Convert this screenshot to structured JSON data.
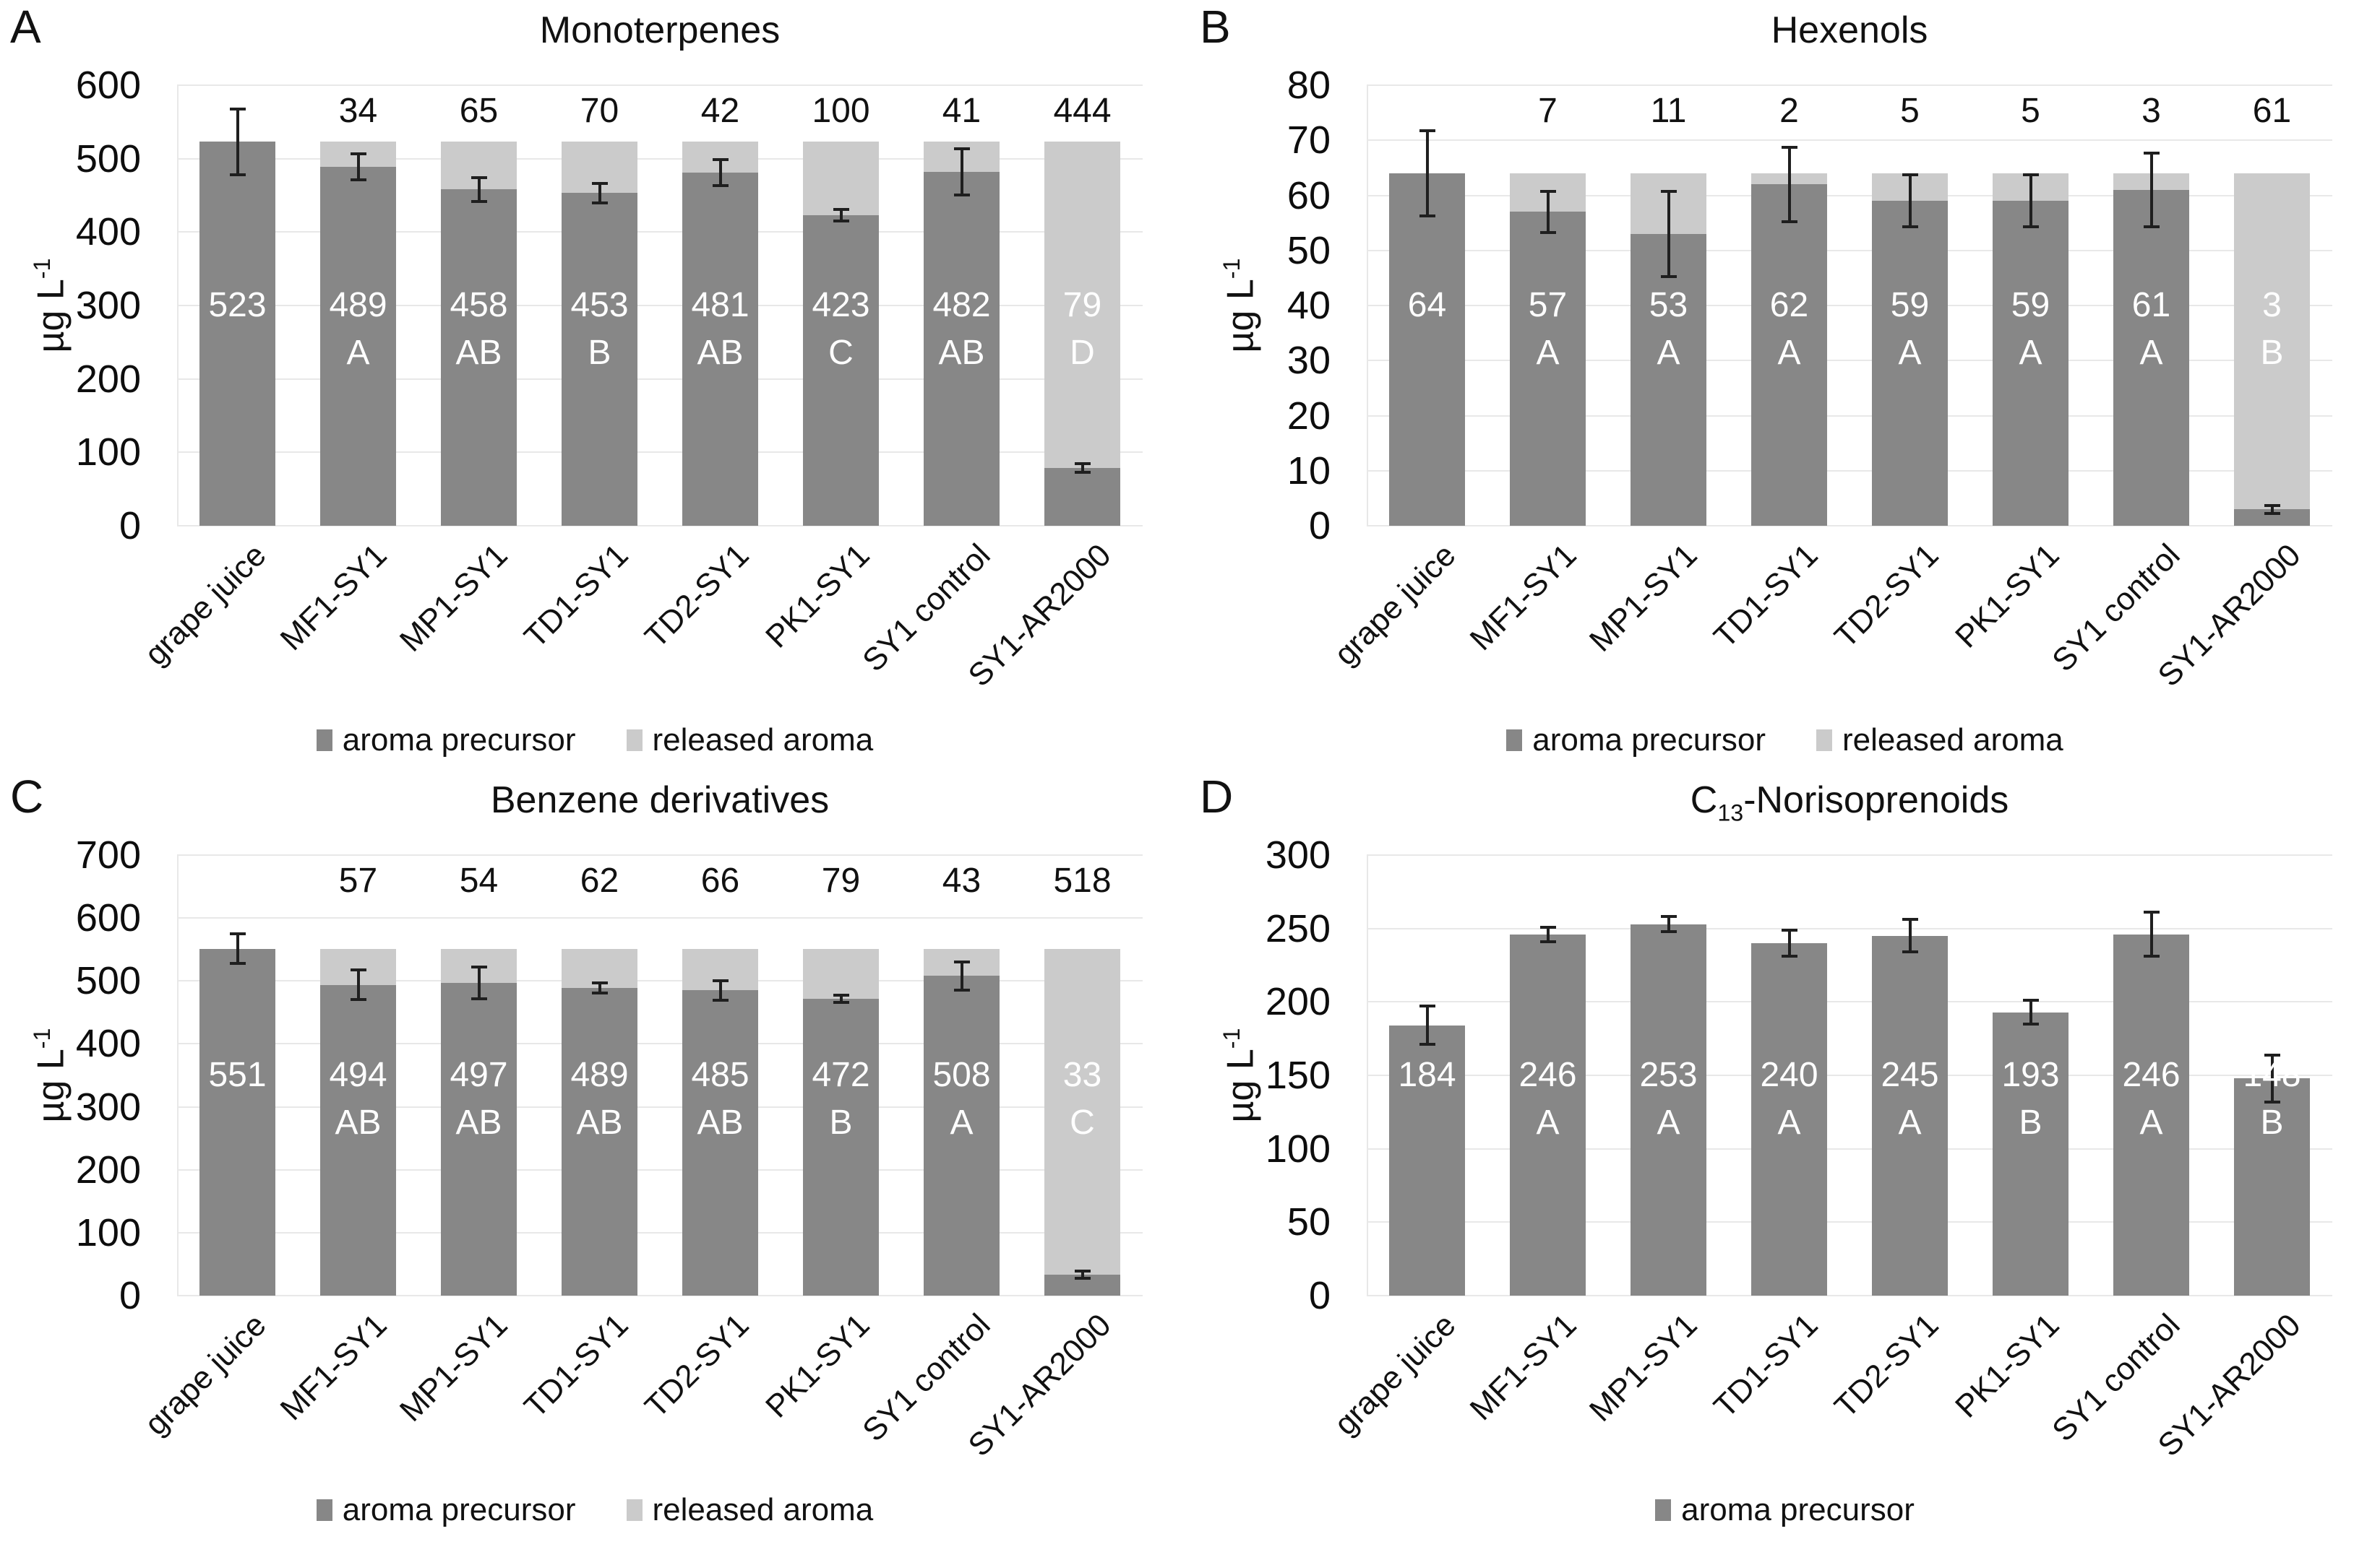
{
  "figure": {
    "background": "#ffffff",
    "ylabel_text": "µg L-1",
    "ylabel_segments": [
      {
        "t": "µg L"
      },
      {
        "t": "-1",
        "sup": true
      }
    ]
  },
  "colors": {
    "precursor_bar": "#878787",
    "released_bar": "#cbcbcb",
    "gridline": "#e8e8e8",
    "axis_line": "#e8e8e8",
    "error_bar": "#1f1f1f",
    "bar_value_text": "#ffffff",
    "released_value_text": "#111111",
    "text": "#111111"
  },
  "chart_data": [
    {
      "panel_letter": "A",
      "type": "bar",
      "stacked": true,
      "title": "Monoterpenes",
      "title_segments": [
        {
          "t": "Monoterpenes"
        }
      ],
      "ylabel": "µg L-1",
      "ylim": [
        0,
        600
      ],
      "yticks": [
        0,
        100,
        200,
        300,
        400,
        500,
        600
      ],
      "grid": true,
      "legend_position": "bottom",
      "categories": [
        "grape juice",
        "MF1-SY1",
        "MP1-SY1",
        "TD1-SY1",
        "TD2-SY1",
        "PK1-SY1",
        "SY1 control",
        "SY1-AR2000"
      ],
      "series": [
        {
          "name": "aroma precursor",
          "values": [
            523,
            489,
            458,
            453,
            481,
            423,
            482,
            79
          ],
          "letters": [
            "",
            "A",
            "AB",
            "B",
            "AB",
            "C",
            "AB",
            "D"
          ],
          "errors": [
            47,
            20,
            18,
            15,
            20,
            10,
            33,
            8
          ]
        },
        {
          "name": "released aroma",
          "values": [
            null,
            34,
            65,
            70,
            42,
            100,
            41,
            444
          ]
        }
      ],
      "legend": [
        "aroma precursor",
        "released aroma"
      ]
    },
    {
      "panel_letter": "B",
      "type": "bar",
      "stacked": true,
      "title": "Hexenols",
      "title_segments": [
        {
          "t": "Hexenols"
        }
      ],
      "ylabel": "µg L-1",
      "ylim": [
        0,
        80
      ],
      "yticks": [
        0,
        10,
        20,
        30,
        40,
        50,
        60,
        70,
        80
      ],
      "grid": true,
      "legend_position": "bottom",
      "categories": [
        "grape juice",
        "MF1-SY1",
        "MP1-SY1",
        "TD1-SY1",
        "TD2-SY1",
        "PK1-SY1",
        "SY1 control",
        "SY1-AR2000"
      ],
      "series": [
        {
          "name": "aroma precursor",
          "values": [
            64,
            57,
            53,
            62,
            59,
            59,
            61,
            3
          ],
          "letters": [
            "",
            "A",
            "A",
            "A",
            "A",
            "A",
            "A",
            "B"
          ],
          "errors": [
            8,
            4,
            8,
            7,
            5,
            5,
            7,
            1
          ]
        },
        {
          "name": "released aroma",
          "values": [
            null,
            7,
            11,
            2,
            5,
            5,
            3,
            61
          ]
        }
      ],
      "legend": [
        "aroma precursor",
        "released aroma"
      ]
    },
    {
      "panel_letter": "C",
      "type": "bar",
      "stacked": true,
      "title": "Benzene derivatives",
      "title_segments": [
        {
          "t": "Benzene derivatives"
        }
      ],
      "ylabel": "µg L-1",
      "ylim": [
        0,
        700
      ],
      "yticks": [
        0,
        100,
        200,
        300,
        400,
        500,
        600,
        700
      ],
      "grid": true,
      "legend_position": "bottom",
      "categories": [
        "grape juice",
        "MF1-SY1",
        "MP1-SY1",
        "TD1-SY1",
        "TD2-SY1",
        "PK1-SY1",
        "SY1 control",
        "SY1-AR2000"
      ],
      "series": [
        {
          "name": "aroma precursor",
          "values": [
            551,
            494,
            497,
            489,
            485,
            472,
            508,
            33
          ],
          "letters": [
            "",
            "AB",
            "AB",
            "AB",
            "AB",
            "B",
            "A",
            "C"
          ],
          "errors": [
            26,
            26,
            28,
            10,
            18,
            8,
            25,
            8
          ]
        },
        {
          "name": "released aroma",
          "values": [
            null,
            57,
            54,
            62,
            66,
            79,
            43,
            518
          ]
        }
      ],
      "legend": [
        "aroma precursor",
        "released aroma"
      ]
    },
    {
      "panel_letter": "D",
      "type": "bar",
      "stacked": false,
      "title": "C13-Norisoprenoids",
      "title_segments": [
        {
          "t": "C"
        },
        {
          "t": "13",
          "sub": true
        },
        {
          "t": "-Norisoprenoids"
        }
      ],
      "ylabel": "µg L-1",
      "ylim": [
        0,
        300
      ],
      "yticks": [
        0,
        50,
        100,
        150,
        200,
        250,
        300
      ],
      "grid": true,
      "legend_position": "bottom",
      "categories": [
        "grape juice",
        "MF1-SY1",
        "MP1-SY1",
        "TD1-SY1",
        "TD2-SY1",
        "PK1-SY1",
        "SY1 control",
        "SY1-AR2000"
      ],
      "series": [
        {
          "name": "aroma precursor",
          "values": [
            184,
            246,
            253,
            240,
            245,
            193,
            246,
            148
          ],
          "letters": [
            "",
            "A",
            "A",
            "A",
            "A",
            "B",
            "A",
            "B"
          ],
          "errors": [
            14,
            6,
            6,
            10,
            12,
            9,
            16,
            17
          ]
        }
      ],
      "legend": [
        "aroma precursor"
      ]
    }
  ]
}
